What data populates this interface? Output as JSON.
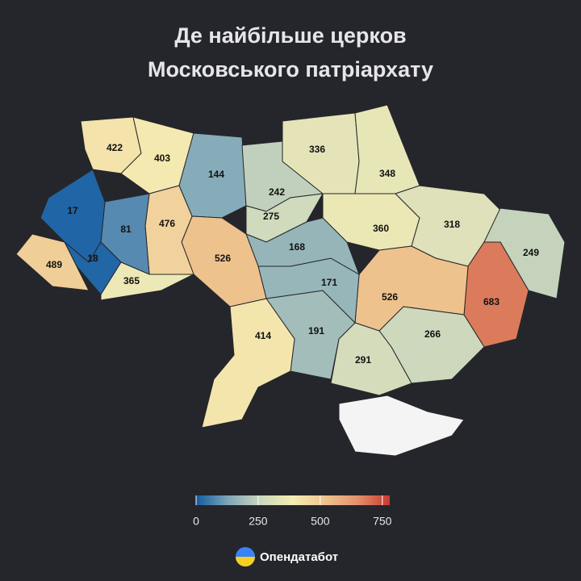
{
  "title": [
    "Де найбільше церков",
    "Московського патріархату"
  ],
  "map": {
    "values": [
      422,
      403,
      144,
      242,
      275,
      336,
      348,
      360,
      318,
      249,
      683,
      526,
      266,
      291,
      191,
      171,
      168,
      414,
      526,
      476,
      81,
      17,
      18,
      489,
      365
    ],
    "colorbar": {
      "range": [
        0,
        780
      ],
      "ticks": [
        0,
        250,
        500,
        750
      ],
      "colors": [
        "#125ba2",
        "#7fa7b8",
        "#cbd7bd",
        "#f5edb4",
        "#efc48f",
        "#e3916c",
        "#c93a2e"
      ]
    }
  },
  "brand": "Опендатабот"
}
